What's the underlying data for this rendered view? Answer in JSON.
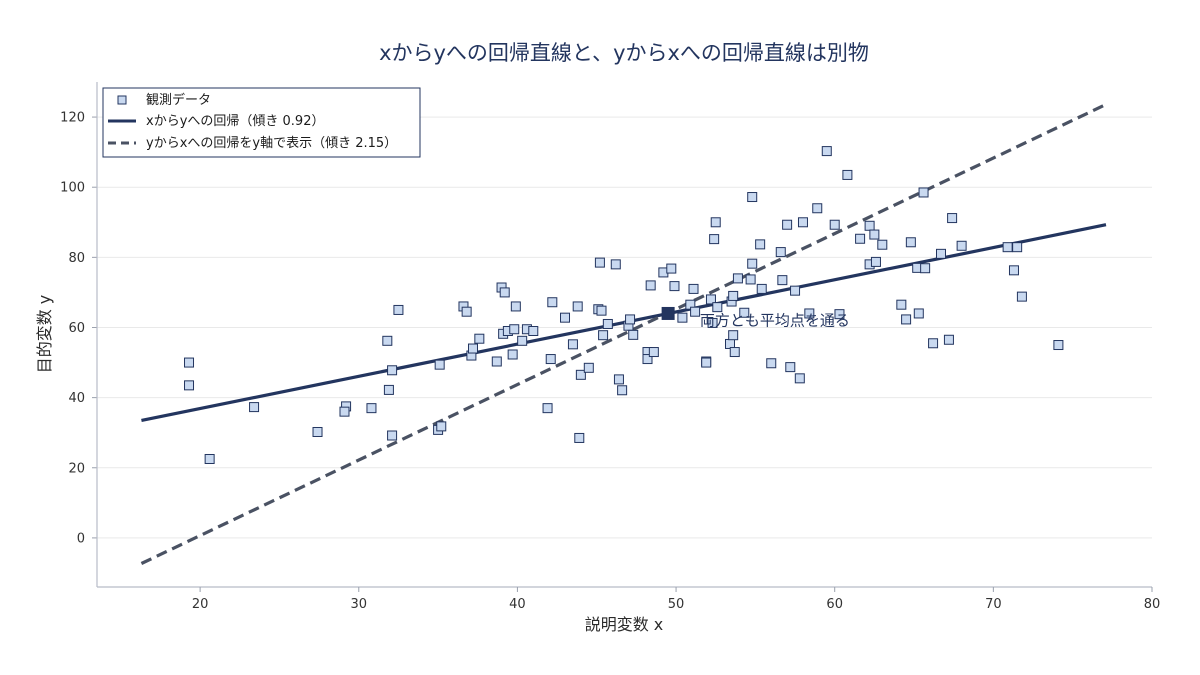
{
  "chart_data": {
    "type": "scatter",
    "title": "xからyへの回帰直線と、yからxへの回帰直線は別物",
    "xlabel": "説明変数 x",
    "ylabel": "目的変数 y",
    "xlim": [
      13.5,
      80
    ],
    "ylim": [
      -14,
      130
    ],
    "xticks": [
      20,
      30,
      40,
      50,
      60,
      70,
      80
    ],
    "yticks": [
      0,
      20,
      40,
      60,
      80,
      100,
      120
    ],
    "grid": "horizontal",
    "legend_position": "top-left",
    "colors": {
      "points_fill": "#c9d9f0",
      "points_edge": "#23355f",
      "line_xy": "#23355f",
      "line_yx": "#4a5263",
      "mean_marker": "#23355f"
    },
    "series": [
      {
        "name": "観測データ",
        "kind": "scatter",
        "points": [
          [
            19.3,
            50.0
          ],
          [
            19.3,
            43.5
          ],
          [
            20.6,
            22.5
          ],
          [
            23.4,
            37.3
          ],
          [
            27.4,
            30.2
          ],
          [
            29.2,
            37.5
          ],
          [
            29.1,
            36.0
          ],
          [
            30.8,
            37.0
          ],
          [
            31.8,
            56.2
          ],
          [
            31.9,
            42.2
          ],
          [
            32.1,
            47.8
          ],
          [
            32.1,
            29.2
          ],
          [
            32.5,
            65.0
          ],
          [
            35.0,
            30.8
          ],
          [
            35.2,
            31.8
          ],
          [
            35.1,
            49.4
          ],
          [
            36.6,
            66.0
          ],
          [
            36.8,
            64.5
          ],
          [
            37.1,
            52.0
          ],
          [
            37.2,
            54.0
          ],
          [
            37.6,
            56.8
          ],
          [
            38.7,
            50.3
          ],
          [
            39.0,
            71.4
          ],
          [
            39.2,
            70.0
          ],
          [
            39.1,
            58.2
          ],
          [
            39.4,
            59.0
          ],
          [
            39.8,
            59.5
          ],
          [
            39.7,
            52.3
          ],
          [
            39.9,
            66.0
          ],
          [
            40.3,
            56.2
          ],
          [
            40.6,
            59.5
          ],
          [
            41.0,
            59.0
          ],
          [
            41.9,
            37.0
          ],
          [
            42.1,
            51.0
          ],
          [
            42.2,
            67.2
          ],
          [
            43.0,
            62.8
          ],
          [
            43.5,
            55.2
          ],
          [
            43.8,
            66.0
          ],
          [
            44.0,
            46.5
          ],
          [
            43.9,
            28.5
          ],
          [
            44.5,
            48.5
          ],
          [
            45.2,
            78.5
          ],
          [
            45.1,
            65.2
          ],
          [
            45.3,
            64.8
          ],
          [
            45.4,
            57.8
          ],
          [
            45.7,
            61.0
          ],
          [
            46.2,
            78.0
          ],
          [
            46.4,
            45.2
          ],
          [
            46.6,
            42.1
          ],
          [
            47.0,
            60.5
          ],
          [
            47.1,
            62.3
          ],
          [
            47.3,
            57.9
          ],
          [
            48.2,
            53.0
          ],
          [
            48.2,
            51.0
          ],
          [
            48.4,
            72.0
          ],
          [
            48.6,
            53.0
          ],
          [
            49.2,
            75.7
          ],
          [
            49.7,
            76.8
          ],
          [
            49.9,
            71.8
          ],
          [
            50.4,
            62.8
          ],
          [
            50.9,
            66.5
          ],
          [
            51.1,
            71.0
          ],
          [
            51.2,
            64.5
          ],
          [
            51.9,
            50.3
          ],
          [
            51.9,
            50.0
          ],
          [
            52.2,
            68.0
          ],
          [
            52.3,
            61.3
          ],
          [
            52.4,
            85.2
          ],
          [
            52.5,
            90.0
          ],
          [
            52.6,
            65.8
          ],
          [
            53.4,
            55.3
          ],
          [
            53.5,
            67.4
          ],
          [
            53.6,
            69.0
          ],
          [
            53.6,
            57.8
          ],
          [
            53.7,
            53.0
          ],
          [
            53.9,
            74.0
          ],
          [
            54.3,
            64.2
          ],
          [
            54.7,
            73.7
          ],
          [
            54.8,
            97.2
          ],
          [
            54.8,
            78.2
          ],
          [
            55.3,
            83.7
          ],
          [
            55.4,
            71.0
          ],
          [
            56.0,
            49.8
          ],
          [
            56.6,
            81.5
          ],
          [
            56.7,
            73.5
          ],
          [
            57.0,
            89.3
          ],
          [
            57.2,
            48.7
          ],
          [
            57.5,
            70.5
          ],
          [
            57.8,
            45.5
          ],
          [
            58.0,
            90.0
          ],
          [
            58.4,
            64.0
          ],
          [
            58.9,
            94.0
          ],
          [
            59.5,
            110.3
          ],
          [
            60.0,
            89.3
          ],
          [
            60.3,
            63.8
          ],
          [
            60.8,
            103.5
          ],
          [
            61.6,
            85.3
          ],
          [
            62.2,
            89.0
          ],
          [
            62.2,
            78.0
          ],
          [
            62.5,
            86.5
          ],
          [
            62.6,
            78.7
          ],
          [
            63.0,
            83.6
          ],
          [
            64.2,
            66.5
          ],
          [
            64.5,
            62.3
          ],
          [
            64.8,
            84.3
          ],
          [
            65.2,
            77.0
          ],
          [
            65.3,
            64.0
          ],
          [
            65.6,
            98.5
          ],
          [
            65.7,
            76.9
          ],
          [
            66.2,
            55.5
          ],
          [
            66.7,
            81.0
          ],
          [
            67.2,
            56.5
          ],
          [
            67.4,
            91.2
          ],
          [
            68.0,
            83.3
          ],
          [
            70.9,
            82.9
          ],
          [
            71.3,
            76.3
          ],
          [
            71.5,
            82.9
          ],
          [
            71.8,
            68.8
          ],
          [
            74.1,
            55.0
          ]
        ]
      },
      {
        "name": "xからyへの回帰（傾き 0.92）",
        "kind": "line",
        "style": "solid",
        "x": [
          16.3,
          77.1
        ],
        "y": [
          33.5,
          89.3
        ]
      },
      {
        "name": "yからxへの回帰をy軸で表示（傾き 2.15）",
        "kind": "line",
        "style": "dashed",
        "x": [
          16.3,
          77.1
        ],
        "y": [
          -7.3,
          123.6
        ]
      }
    ],
    "mean_point": [
      49.5,
      64.0
    ],
    "annotation": {
      "text": "両方とも平均点を通る",
      "x": 51.5,
      "y": 60.5
    }
  }
}
